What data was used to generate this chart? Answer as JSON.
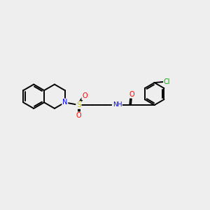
{
  "bg_color": "#eeeeee",
  "atom_colors": {
    "N": "#0000ff",
    "O": "#ff0000",
    "S": "#cccc00",
    "Cl": "#00aa00",
    "C": "#000000",
    "H": "#444444"
  },
  "bond_color": "#000000",
  "bond_width": 1.4,
  "dbo": 0.07
}
